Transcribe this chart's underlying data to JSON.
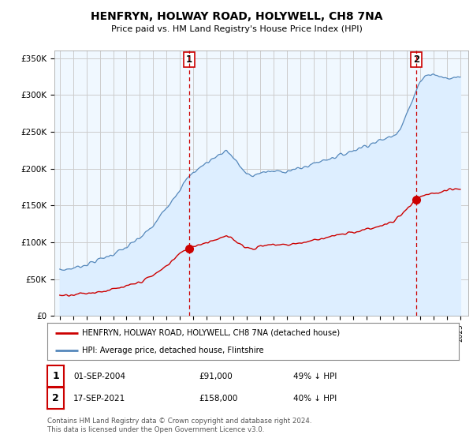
{
  "title": "HENFRYN, HOLWAY ROAD, HOLYWELL, CH8 7NA",
  "subtitle": "Price paid vs. HM Land Registry's House Price Index (HPI)",
  "legend_line1": "HENFRYN, HOLWAY ROAD, HOLYWELL, CH8 7NA (detached house)",
  "legend_line2": "HPI: Average price, detached house, Flintshire",
  "transaction1_date": "01-SEP-2004",
  "transaction1_price": "£91,000",
  "transaction1_hpi": "49% ↓ HPI",
  "transaction2_date": "17-SEP-2021",
  "transaction2_price": "£158,000",
  "transaction2_hpi": "40% ↓ HPI",
  "footer": "Contains HM Land Registry data © Crown copyright and database right 2024.\nThis data is licensed under the Open Government Licence v3.0.",
  "hpi_color": "#5588bb",
  "hpi_fill_color": "#ddeeff",
  "price_color": "#cc0000",
  "marker_color": "#cc0000",
  "vline_color": "#cc0000",
  "grid_color": "#cccccc",
  "background_color": "#ffffff",
  "chart_bg_color": "#f0f8ff",
  "ylim_min": 0,
  "ylim_max": 360000,
  "yticks": [
    0,
    50000,
    100000,
    150000,
    200000,
    250000,
    300000,
    350000
  ],
  "ytick_labels": [
    "£0",
    "£50K",
    "£100K",
    "£150K",
    "£200K",
    "£250K",
    "£300K",
    "£350K"
  ],
  "transaction1_year": 2004.67,
  "transaction1_value": 91000,
  "transaction2_year": 2021.71,
  "transaction2_value": 158000,
  "hpi_anchors_x": [
    1995,
    1996,
    1997,
    1998,
    1999,
    2000,
    2001,
    2002,
    2003,
    2004,
    2004.5,
    2005,
    2006,
    2007,
    2007.5,
    2008,
    2009,
    2009.5,
    2010,
    2011,
    2012,
    2013,
    2014,
    2015,
    2016,
    2017,
    2018,
    2019,
    2020,
    2020.5,
    2021,
    2021.5,
    2022,
    2022.5,
    2023,
    2024,
    2025
  ],
  "hpi_anchors_y": [
    62000,
    65000,
    70000,
    77000,
    84000,
    93000,
    106000,
    122000,
    148000,
    172000,
    185000,
    195000,
    208000,
    220000,
    225000,
    215000,
    192000,
    190000,
    195000,
    196000,
    197000,
    200000,
    207000,
    213000,
    218000,
    225000,
    232000,
    238000,
    245000,
    255000,
    275000,
    295000,
    320000,
    328000,
    328000,
    322000,
    325000
  ],
  "price_anchors_x": [
    1995,
    1996,
    1997,
    1998,
    1999,
    2000,
    2001,
    2002,
    2003,
    2004,
    2004.67,
    2005,
    2006,
    2007,
    2007.5,
    2008,
    2009,
    2009.5,
    2010,
    2011,
    2012,
    2013,
    2014,
    2015,
    2016,
    2017,
    2018,
    2019,
    2020,
    2021,
    2021.71,
    2022,
    2023,
    2024,
    2025
  ],
  "price_anchors_y": [
    28000,
    29500,
    31000,
    33000,
    36000,
    40000,
    46000,
    55000,
    68000,
    85000,
    91000,
    95000,
    100000,
    106000,
    108000,
    104000,
    93000,
    91000,
    95000,
    97000,
    97000,
    99000,
    103000,
    107000,
    110000,
    114000,
    118000,
    122000,
    128000,
    145000,
    158000,
    162000,
    166000,
    170000,
    173000
  ]
}
